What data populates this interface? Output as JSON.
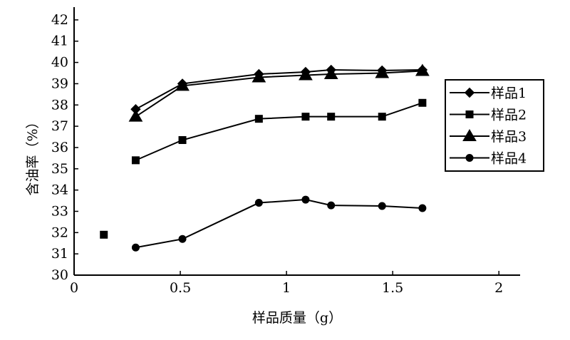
{
  "chart_data": {
    "type": "line",
    "title": "",
    "xlabel": "样品质量（g）",
    "ylabel": "含油率（%）",
    "xlim": [
      0,
      2.1
    ],
    "ylim": [
      30,
      42.6
    ],
    "x_ticks": [
      0,
      0.5,
      1,
      1.5,
      2
    ],
    "x_tick_labels": [
      "0",
      "0.5",
      "1",
      "1.5",
      "2"
    ],
    "y_ticks": [
      30,
      31,
      32,
      33,
      34,
      35,
      36,
      37,
      38,
      39,
      40,
      41,
      42
    ],
    "y_tick_labels": [
      "30",
      "31",
      "32",
      "33",
      "34",
      "35",
      "36",
      "37",
      "38",
      "39",
      "40",
      "41",
      "42"
    ],
    "legend_position": "right",
    "series": [
      {
        "name": "样品1",
        "marker": "diamond",
        "x": [
          0.29,
          0.51,
          0.87,
          1.09,
          1.21,
          1.45,
          1.64
        ],
        "y": [
          37.8,
          39.0,
          39.45,
          39.55,
          39.65,
          39.62,
          39.65
        ]
      },
      {
        "name": "样品2",
        "marker": "square",
        "x": [
          0.29,
          0.51,
          0.87,
          1.09,
          1.21,
          1.45,
          1.64
        ],
        "y": [
          35.4,
          36.35,
          37.35,
          37.45,
          37.45,
          37.45,
          38.1
        ]
      },
      {
        "name": "样品3",
        "marker": "triangle",
        "x": [
          0.29,
          0.51,
          0.87,
          1.09,
          1.21,
          1.45,
          1.64
        ],
        "y": [
          37.45,
          38.9,
          39.3,
          39.4,
          39.45,
          39.5,
          39.6
        ]
      },
      {
        "name": "样品4",
        "marker": "circle",
        "x": [
          0.29,
          0.51,
          0.87,
          1.09,
          1.21,
          1.45,
          1.64
        ],
        "y": [
          31.3,
          31.7,
          33.4,
          33.55,
          33.28,
          33.25,
          33.15
        ]
      }
    ],
    "outliers": [
      {
        "marker": "square",
        "x": 0.14,
        "y": 31.9
      }
    ]
  }
}
